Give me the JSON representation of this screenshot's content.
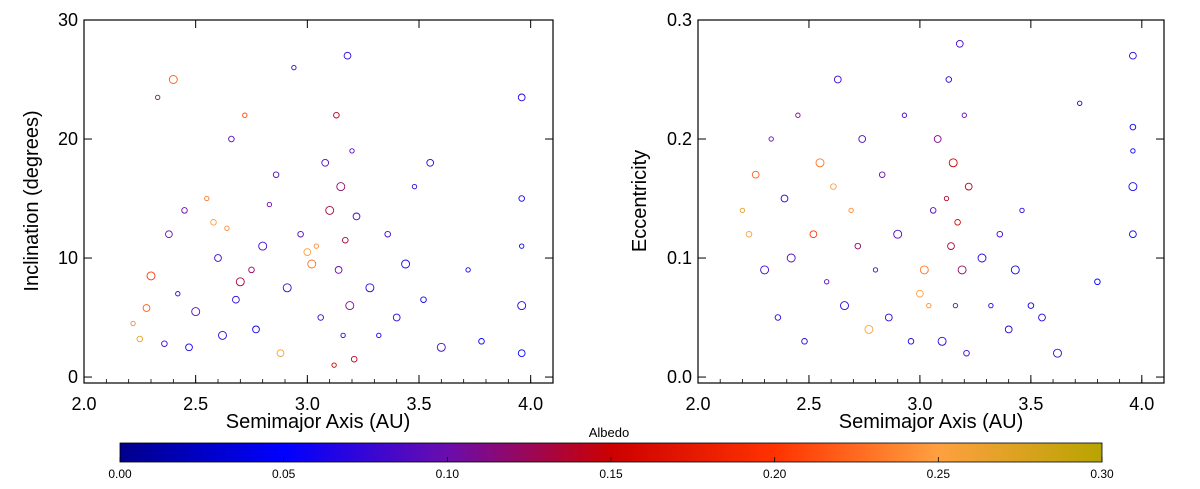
{
  "chart_data": [
    {
      "type": "scatter",
      "title": "",
      "xlabel": "Semimajor Axis (AU)",
      "ylabel": "Inclination (degrees)",
      "xlim": [
        2.0,
        4.1
      ],
      "ylim": [
        -0.5,
        30
      ],
      "xticks": [
        2.0,
        2.5,
        3.0,
        3.5,
        4.0
      ],
      "xtick_labels": [
        "2.0",
        "2.5",
        "3.0",
        "3.5",
        "4.0"
      ],
      "yticks": [
        0,
        10,
        20,
        30
      ],
      "ytick_labels": [
        "0",
        "10",
        "20",
        "30"
      ],
      "grid": false,
      "marker": "open-circle",
      "color_by": "Albedo",
      "points": [
        {
          "a": 2.22,
          "y": 4.5,
          "albedo": 0.24
        },
        {
          "a": 2.25,
          "y": 3.2,
          "albedo": 0.27
        },
        {
          "a": 2.28,
          "y": 5.8,
          "albedo": 0.22
        },
        {
          "a": 2.3,
          "y": 8.5,
          "albedo": 0.2
        },
        {
          "a": 2.33,
          "y": 23.5,
          "albedo": 0.12
        },
        {
          "a": 2.36,
          "y": 2.8,
          "albedo": 0.08
        },
        {
          "a": 2.38,
          "y": 12.0,
          "albedo": 0.1
        },
        {
          "a": 2.4,
          "y": 25.0,
          "albedo": 0.22
        },
        {
          "a": 2.42,
          "y": 7.0,
          "albedo": 0.07
        },
        {
          "a": 2.45,
          "y": 14.0,
          "albedo": 0.1
        },
        {
          "a": 2.47,
          "y": 2.5,
          "albedo": 0.06
        },
        {
          "a": 2.5,
          "y": 5.5,
          "albedo": 0.09
        },
        {
          "a": 2.55,
          "y": 15.0,
          "albedo": 0.23
        },
        {
          "a": 2.58,
          "y": 13.0,
          "albedo": 0.25
        },
        {
          "a": 2.6,
          "y": 10.0,
          "albedo": 0.08
        },
        {
          "a": 2.62,
          "y": 3.5,
          "albedo": 0.07
        },
        {
          "a": 2.64,
          "y": 12.5,
          "albedo": 0.24
        },
        {
          "a": 2.66,
          "y": 20.0,
          "albedo": 0.09
        },
        {
          "a": 2.68,
          "y": 6.5,
          "albedo": 0.07
        },
        {
          "a": 2.7,
          "y": 8.0,
          "albedo": 0.13
        },
        {
          "a": 2.72,
          "y": 22.0,
          "albedo": 0.21
        },
        {
          "a": 2.75,
          "y": 9.0,
          "albedo": 0.12
        },
        {
          "a": 2.77,
          "y": 4.0,
          "albedo": 0.06
        },
        {
          "a": 2.8,
          "y": 11.0,
          "albedo": 0.08
        },
        {
          "a": 2.83,
          "y": 14.5,
          "albedo": 0.1
        },
        {
          "a": 2.86,
          "y": 17.0,
          "albedo": 0.09
        },
        {
          "a": 2.88,
          "y": 2.0,
          "albedo": 0.26
        },
        {
          "a": 2.91,
          "y": 7.5,
          "albedo": 0.08
        },
        {
          "a": 2.94,
          "y": 26.0,
          "albedo": 0.07
        },
        {
          "a": 2.97,
          "y": 12.0,
          "albedo": 0.09
        },
        {
          "a": 3.0,
          "y": 10.5,
          "albedo": 0.25
        },
        {
          "a": 3.02,
          "y": 9.5,
          "albedo": 0.23
        },
        {
          "a": 3.04,
          "y": 11.0,
          "albedo": 0.24
        },
        {
          "a": 3.06,
          "y": 5.0,
          "albedo": 0.08
        },
        {
          "a": 3.08,
          "y": 18.0,
          "albedo": 0.09
        },
        {
          "a": 3.1,
          "y": 14.0,
          "albedo": 0.13
        },
        {
          "a": 3.12,
          "y": 1.0,
          "albedo": 0.15
        },
        {
          "a": 3.13,
          "y": 22.0,
          "albedo": 0.14
        },
        {
          "a": 3.14,
          "y": 9.0,
          "albedo": 0.1
        },
        {
          "a": 3.15,
          "y": 16.0,
          "albedo": 0.12
        },
        {
          "a": 3.16,
          "y": 3.5,
          "albedo": 0.07
        },
        {
          "a": 3.17,
          "y": 11.5,
          "albedo": 0.13
        },
        {
          "a": 3.18,
          "y": 27.0,
          "albedo": 0.07
        },
        {
          "a": 3.19,
          "y": 6.0,
          "albedo": 0.11
        },
        {
          "a": 3.2,
          "y": 19.0,
          "albedo": 0.09
        },
        {
          "a": 3.21,
          "y": 1.5,
          "albedo": 0.14
        },
        {
          "a": 3.22,
          "y": 13.5,
          "albedo": 0.08
        },
        {
          "a": 3.28,
          "y": 7.5,
          "albedo": 0.07
        },
        {
          "a": 3.32,
          "y": 3.5,
          "albedo": 0.06
        },
        {
          "a": 3.36,
          "y": 12.0,
          "albedo": 0.08
        },
        {
          "a": 3.4,
          "y": 5.0,
          "albedo": 0.07
        },
        {
          "a": 3.44,
          "y": 9.5,
          "albedo": 0.06
        },
        {
          "a": 3.48,
          "y": 16.0,
          "albedo": 0.07
        },
        {
          "a": 3.52,
          "y": 6.5,
          "albedo": 0.06
        },
        {
          "a": 3.55,
          "y": 18.0,
          "albedo": 0.07
        },
        {
          "a": 3.6,
          "y": 2.5,
          "albedo": 0.08
        },
        {
          "a": 3.72,
          "y": 9.0,
          "albedo": 0.06
        },
        {
          "a": 3.78,
          "y": 3.0,
          "albedo": 0.05
        },
        {
          "a": 3.96,
          "y": 2.0,
          "albedo": 0.05
        },
        {
          "a": 3.96,
          "y": 6.0,
          "albedo": 0.06
        },
        {
          "a": 3.96,
          "y": 11.0,
          "albedo": 0.05
        },
        {
          "a": 3.96,
          "y": 15.0,
          "albedo": 0.06
        },
        {
          "a": 3.96,
          "y": 23.5,
          "albedo": 0.07
        }
      ]
    },
    {
      "type": "scatter",
      "title": "",
      "xlabel": "Semimajor Axis (AU)",
      "ylabel": "Eccentricity",
      "xlim": [
        2.0,
        4.1
      ],
      "ylim": [
        -0.005,
        0.3
      ],
      "xticks": [
        2.0,
        2.5,
        3.0,
        3.5,
        4.0
      ],
      "xtick_labels": [
        "2.0",
        "2.5",
        "3.0",
        "3.5",
        "4.0"
      ],
      "yticks": [
        0.0,
        0.1,
        0.2,
        0.3
      ],
      "ytick_labels": [
        "0.0",
        "0.1",
        "0.2",
        "0.3"
      ],
      "grid": false,
      "marker": "open-circle",
      "color_by": "Albedo",
      "points": [
        {
          "a": 2.2,
          "y": 0.14,
          "albedo": 0.27
        },
        {
          "a": 2.23,
          "y": 0.12,
          "albedo": 0.25
        },
        {
          "a": 2.26,
          "y": 0.17,
          "albedo": 0.22
        },
        {
          "a": 2.3,
          "y": 0.09,
          "albedo": 0.08
        },
        {
          "a": 2.33,
          "y": 0.2,
          "albedo": 0.1
        },
        {
          "a": 2.36,
          "y": 0.05,
          "albedo": 0.07
        },
        {
          "a": 2.39,
          "y": 0.15,
          "albedo": 0.06
        },
        {
          "a": 2.42,
          "y": 0.1,
          "albedo": 0.09
        },
        {
          "a": 2.45,
          "y": 0.22,
          "albedo": 0.11
        },
        {
          "a": 2.48,
          "y": 0.03,
          "albedo": 0.07
        },
        {
          "a": 2.52,
          "y": 0.12,
          "albedo": 0.2
        },
        {
          "a": 2.55,
          "y": 0.18,
          "albedo": 0.23
        },
        {
          "a": 2.58,
          "y": 0.08,
          "albedo": 0.09
        },
        {
          "a": 2.61,
          "y": 0.16,
          "albedo": 0.25
        },
        {
          "a": 2.63,
          "y": 0.25,
          "albedo": 0.08
        },
        {
          "a": 2.66,
          "y": 0.06,
          "albedo": 0.07
        },
        {
          "a": 2.69,
          "y": 0.14,
          "albedo": 0.24
        },
        {
          "a": 2.72,
          "y": 0.11,
          "albedo": 0.12
        },
        {
          "a": 2.74,
          "y": 0.2,
          "albedo": 0.09
        },
        {
          "a": 2.77,
          "y": 0.04,
          "albedo": 0.25
        },
        {
          "a": 2.8,
          "y": 0.09,
          "albedo": 0.08
        },
        {
          "a": 2.83,
          "y": 0.17,
          "albedo": 0.1
        },
        {
          "a": 2.86,
          "y": 0.05,
          "albedo": 0.07
        },
        {
          "a": 2.9,
          "y": 0.12,
          "albedo": 0.09
        },
        {
          "a": 2.93,
          "y": 0.22,
          "albedo": 0.08
        },
        {
          "a": 2.96,
          "y": 0.03,
          "albedo": 0.06
        },
        {
          "a": 3.0,
          "y": 0.07,
          "albedo": 0.25
        },
        {
          "a": 3.02,
          "y": 0.09,
          "albedo": 0.23
        },
        {
          "a": 3.04,
          "y": 0.06,
          "albedo": 0.24
        },
        {
          "a": 3.06,
          "y": 0.14,
          "albedo": 0.09
        },
        {
          "a": 3.08,
          "y": 0.2,
          "albedo": 0.11
        },
        {
          "a": 3.1,
          "y": 0.03,
          "albedo": 0.07
        },
        {
          "a": 3.12,
          "y": 0.15,
          "albedo": 0.14
        },
        {
          "a": 3.13,
          "y": 0.25,
          "albedo": 0.07
        },
        {
          "a": 3.14,
          "y": 0.11,
          "albedo": 0.13
        },
        {
          "a": 3.15,
          "y": 0.18,
          "albedo": 0.15
        },
        {
          "a": 3.16,
          "y": 0.06,
          "albedo": 0.09
        },
        {
          "a": 3.17,
          "y": 0.13,
          "albedo": 0.16
        },
        {
          "a": 3.18,
          "y": 0.28,
          "albedo": 0.08
        },
        {
          "a": 3.19,
          "y": 0.09,
          "albedo": 0.12
        },
        {
          "a": 3.2,
          "y": 0.22,
          "albedo": 0.1
        },
        {
          "a": 3.21,
          "y": 0.02,
          "albedo": 0.08
        },
        {
          "a": 3.22,
          "y": 0.16,
          "albedo": 0.14
        },
        {
          "a": 3.28,
          "y": 0.1,
          "albedo": 0.07
        },
        {
          "a": 3.32,
          "y": 0.06,
          "albedo": 0.06
        },
        {
          "a": 3.36,
          "y": 0.12,
          "albedo": 0.08
        },
        {
          "a": 3.4,
          "y": 0.04,
          "albedo": 0.07
        },
        {
          "a": 3.43,
          "y": 0.09,
          "albedo": 0.06
        },
        {
          "a": 3.46,
          "y": 0.14,
          "albedo": 0.07
        },
        {
          "a": 3.5,
          "y": 0.06,
          "albedo": 0.06
        },
        {
          "a": 3.55,
          "y": 0.05,
          "albedo": 0.07
        },
        {
          "a": 3.62,
          "y": 0.02,
          "albedo": 0.08
        },
        {
          "a": 3.72,
          "y": 0.23,
          "albedo": 0.06
        },
        {
          "a": 3.8,
          "y": 0.08,
          "albedo": 0.05
        },
        {
          "a": 3.96,
          "y": 0.12,
          "albedo": 0.05
        },
        {
          "a": 3.96,
          "y": 0.16,
          "albedo": 0.06
        },
        {
          "a": 3.96,
          "y": 0.19,
          "albedo": 0.05
        },
        {
          "a": 3.96,
          "y": 0.21,
          "albedo": 0.06
        },
        {
          "a": 3.96,
          "y": 0.27,
          "albedo": 0.07
        }
      ]
    }
  ],
  "colorbar": {
    "label": "Albedo",
    "range": [
      0.0,
      0.3
    ],
    "ticks": [
      0.0,
      0.05,
      0.1,
      0.15,
      0.2,
      0.25,
      0.3
    ],
    "tick_labels": [
      "0.00",
      "0.05",
      "0.10",
      "0.15",
      "0.20",
      "0.25",
      "0.30"
    ],
    "colormap": [
      {
        "value": 0.0,
        "color": "#00008c"
      },
      {
        "value": 0.05,
        "color": "#0000ff"
      },
      {
        "value": 0.1,
        "color": "#6a0dad"
      },
      {
        "value": 0.15,
        "color": "#cc0000"
      },
      {
        "value": 0.2,
        "color": "#ff3300"
      },
      {
        "value": 0.25,
        "color": "#ffa040"
      },
      {
        "value": 0.3,
        "color": "#b8a400"
      }
    ]
  }
}
